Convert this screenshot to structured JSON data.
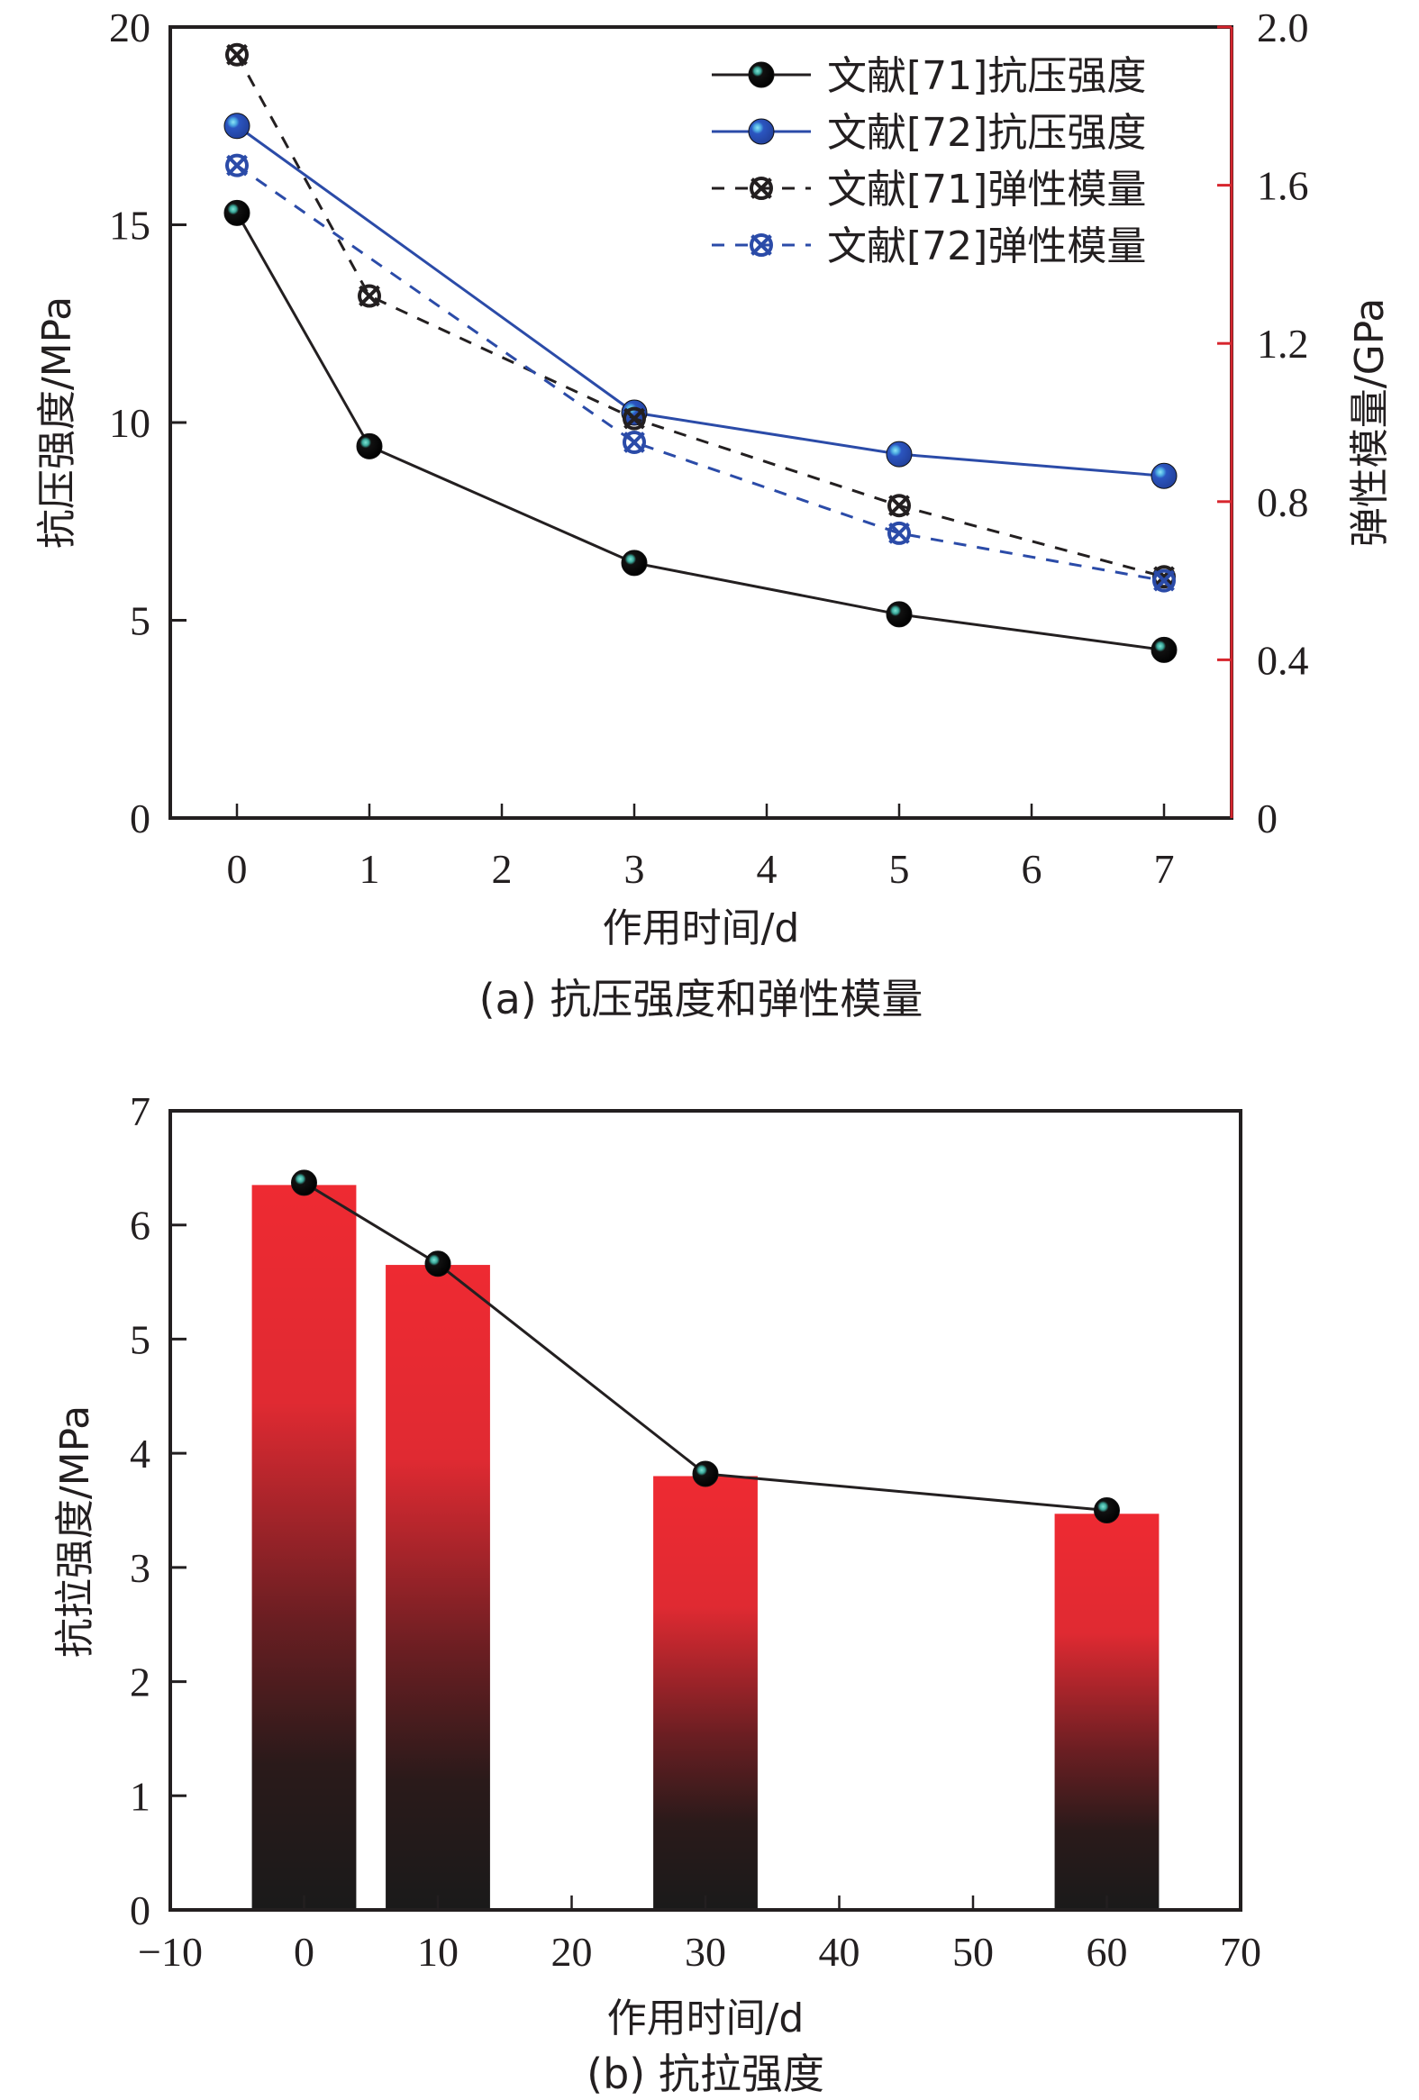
{
  "chart_data": [
    {
      "type": "line",
      "title": "",
      "caption": "(a) 抗压强度和弹性模量",
      "xlabel": "作用时间/d",
      "ylabel": "抗压强度/MPa",
      "y2label": "弹性模量/GPa",
      "xlim": [
        -0.5,
        7.5
      ],
      "ylim": [
        0,
        20
      ],
      "y2lim": [
        0,
        2.0
      ],
      "xticks": [
        0,
        1,
        2,
        3,
        4,
        5,
        6,
        7
      ],
      "yticks": [
        0,
        5,
        10,
        15,
        20
      ],
      "y2ticks": [
        "0",
        "0.4",
        "0.8",
        "1.2",
        "1.6",
        "2.0"
      ],
      "y2tick_values": [
        0,
        0.4,
        0.8,
        1.2,
        1.6,
        2.0
      ],
      "grid": false,
      "legend_position": "top-right",
      "x": [
        0,
        1,
        3,
        5,
        7
      ],
      "series": [
        {
          "name": "文献[71]抗压强度",
          "axis": "left",
          "style": "solid",
          "marker": "sphere",
          "color": "#231f20",
          "highlight": "#4fc0b0",
          "x": [
            0,
            1,
            3,
            5,
            7
          ],
          "values": [
            15.3,
            9.4,
            6.45,
            5.15,
            4.25
          ]
        },
        {
          "name": "文献[72]抗压强度",
          "axis": "left",
          "style": "solid",
          "marker": "sphere",
          "color": "#2b4ba8",
          "highlight": "#5fc8e8",
          "x": [
            0,
            3,
            5,
            7
          ],
          "values": [
            17.5,
            10.25,
            9.2,
            8.65
          ]
        },
        {
          "name": "文献[71]弹性模量",
          "axis": "right",
          "style": "dashed",
          "marker": "circle-x",
          "color": "#231f20",
          "x": [
            0,
            1,
            3,
            5,
            7
          ],
          "values": [
            1.93,
            1.32,
            1.01,
            0.79,
            0.61
          ]
        },
        {
          "name": "文献[72]弹性模量",
          "axis": "right",
          "style": "dashed",
          "marker": "circle-x",
          "color": "#2b4ba8",
          "x": [
            0,
            3,
            5,
            7
          ],
          "values": [
            1.65,
            0.95,
            0.72,
            0.6
          ]
        }
      ],
      "colors": {
        "axis": "#231f20",
        "right_axis": "#d7262e"
      }
    },
    {
      "type": "bar",
      "title": "",
      "caption": "(b) 抗拉强度",
      "xlabel": "作用时间/d",
      "ylabel": "抗拉强度/MPa",
      "xlim": [
        -10,
        70
      ],
      "ylim": [
        0,
        7
      ],
      "xticks": [
        -10,
        0,
        10,
        20,
        30,
        40,
        50,
        60,
        70
      ],
      "xtick_labels": [
        "−10",
        "0",
        "10",
        "20",
        "30",
        "40",
        "50",
        "60",
        "70"
      ],
      "yticks": [
        0,
        1,
        2,
        3,
        4,
        5,
        6,
        7
      ],
      "grid": false,
      "x": [
        0,
        10,
        30,
        60
      ],
      "bar_width": 7.8,
      "values": [
        6.35,
        5.65,
        3.8,
        3.47
      ],
      "line_values": [
        6.37,
        5.66,
        3.82,
        3.5
      ],
      "colors": {
        "bar_top": "#ee2a32",
        "bar_bottom": "#1a1a1a",
        "line": "#231f20",
        "marker": "#111111",
        "marker_highlight": "#4fc0b0"
      }
    }
  ]
}
